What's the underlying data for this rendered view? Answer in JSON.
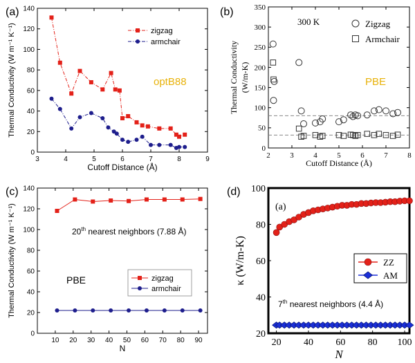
{
  "chart_data": [
    {
      "type": "line",
      "panel_label": "(a)",
      "xlabel": "Cutoff Distance (Å)",
      "ylabel": "Thermal Conductivity (W m⁻¹ K⁻¹)",
      "xlim": [
        3,
        9
      ],
      "ylim": [
        0,
        140
      ],
      "xticks": [
        3,
        4,
        5,
        6,
        7,
        8,
        9
      ],
      "yticks": [
        0,
        20,
        40,
        60,
        80,
        100,
        120,
        140
      ],
      "annotation": "optB88",
      "annotation_color": "#e8b20a",
      "legend_position": "top-right",
      "series": [
        {
          "name": "zigzag",
          "color": "#e32119",
          "marker": "square",
          "x": [
            3.5,
            3.8,
            4.2,
            4.5,
            4.9,
            5.3,
            5.6,
            5.75,
            5.9,
            6.0,
            6.2,
            6.5,
            6.7,
            6.9,
            7.3,
            7.7,
            7.9,
            8.0,
            8.2
          ],
          "values": [
            131,
            87,
            57,
            79,
            68,
            61,
            77,
            61,
            60,
            33,
            35,
            29,
            26,
            25,
            23,
            23,
            17,
            15,
            17
          ]
        },
        {
          "name": "armchair",
          "color": "#1d1d8c",
          "marker": "circle",
          "x": [
            3.5,
            3.8,
            4.2,
            4.5,
            4.9,
            5.3,
            5.5,
            5.7,
            5.8,
            6.0,
            6.2,
            6.5,
            6.7,
            7.0,
            7.3,
            7.7,
            7.9,
            8.0,
            8.2
          ],
          "values": [
            52,
            42,
            23,
            34,
            38,
            33,
            24,
            20,
            18,
            12,
            10,
            12,
            15,
            7,
            7,
            7,
            4,
            5,
            5
          ]
        }
      ]
    },
    {
      "type": "scatter",
      "panel_label": "(b)",
      "xlabel": "Cutoff Distance (Å)",
      "ylabel_line1": "Thermal Conductivity",
      "ylabel_line2": "(W/m-K)",
      "xlim": [
        2,
        8
      ],
      "ylim": [
        0,
        350
      ],
      "xticks": [
        2,
        3,
        4,
        5,
        6,
        7,
        8
      ],
      "yticks": [
        0,
        50,
        100,
        150,
        200,
        250,
        300,
        350
      ],
      "annotation_temp": "300 K",
      "annotation": "PBE",
      "annotation_color": "#e8b20a",
      "legend_position": "top-right",
      "reference_lines": [
        80,
        32
      ],
      "series": [
        {
          "name": "Zigzag",
          "marker": "open-circle",
          "x": [
            2.2,
            2.22,
            2.25,
            3.3,
            3.4,
            3.5,
            4.0,
            4.2,
            4.3,
            5.0,
            5.2,
            5.5,
            5.6,
            5.7,
            5.8,
            6.2,
            6.5,
            6.7,
            7.0,
            7.3,
            7.5
          ],
          "values": [
            258,
            118,
            165,
            212,
            92,
            60,
            62,
            65,
            72,
            65,
            70,
            82,
            78,
            82,
            80,
            82,
            92,
            95,
            92,
            85,
            88
          ]
        },
        {
          "name": "Armchair",
          "marker": "open-square",
          "x": [
            2.2,
            2.22,
            3.3,
            3.4,
            3.5,
            4.0,
            4.2,
            4.3,
            5.0,
            5.2,
            5.5,
            5.6,
            5.7,
            5.8,
            6.2,
            6.5,
            6.7,
            7.0,
            7.3,
            7.5
          ],
          "values": [
            212,
            170,
            48,
            28,
            30,
            32,
            28,
            30,
            32,
            30,
            33,
            32,
            30,
            32,
            35,
            32,
            35,
            32,
            30,
            33
          ]
        }
      ]
    },
    {
      "type": "line",
      "panel_label": "(c)",
      "xlabel": "N",
      "ylabel": "Thermal Conductivity (W m⁻¹ K⁻¹)",
      "xlim": [
        0,
        95
      ],
      "ylim": [
        0,
        140
      ],
      "xticks": [
        10,
        20,
        30,
        40,
        50,
        60,
        70,
        80,
        90
      ],
      "yticks": [
        0,
        20,
        40,
        60,
        80,
        100,
        120,
        140
      ],
      "annotation_prefix": "20",
      "annotation_sup": "th",
      "annotation_suffix": " nearest neighbors (7.88 Å)",
      "annotation2": "PBE",
      "legend_position": "right",
      "series": [
        {
          "name": "zigzag",
          "color": "#e32119",
          "marker": "square",
          "x": [
            11,
            21,
            31,
            41,
            51,
            61,
            71,
            81,
            91
          ],
          "values": [
            118,
            129,
            127,
            128,
            127.5,
            129,
            129,
            129,
            129.5
          ]
        },
        {
          "name": "armchair",
          "color": "#1d1d8c",
          "marker": "circle",
          "x": [
            11,
            21,
            31,
            41,
            51,
            61,
            71,
            81,
            91
          ],
          "values": [
            22,
            22,
            22,
            22,
            22,
            22,
            22,
            22,
            22
          ]
        }
      ]
    },
    {
      "type": "line",
      "panel_label": "(d)",
      "inner_label": "(a)",
      "xlabel": "N",
      "ylabel": "κ (W/m-K)",
      "xlim": [
        15,
        103
      ],
      "ylim": [
        20,
        100
      ],
      "xticks": [
        20,
        40,
        60,
        80,
        100
      ],
      "yticks": [
        20,
        40,
        60,
        80,
        100
      ],
      "annotation_prefix": "7",
      "annotation_sup": "th",
      "annotation_suffix": " nearest neighbors (4.4 Å)",
      "legend_position": "right",
      "series": [
        {
          "name": "ZZ",
          "color": "#e32119",
          "marker": "circle",
          "x": [
            20,
            22,
            25,
            28,
            31,
            34,
            37,
            40,
            43,
            46,
            49,
            52,
            55,
            58,
            61,
            64,
            67,
            70,
            73,
            76,
            79,
            82,
            85,
            88,
            91,
            94,
            97,
            100,
            103
          ],
          "values": [
            75.5,
            78.5,
            80,
            81.5,
            82.5,
            84,
            85.5,
            86.5,
            87.5,
            88,
            88.5,
            89,
            89.5,
            90,
            90.5,
            90.5,
            91,
            91,
            91.5,
            91.5,
            91.8,
            92,
            92,
            92.2,
            92.5,
            92.5,
            92.8,
            93,
            93
          ]
        },
        {
          "name": "AM",
          "color": "#1b2fd8",
          "marker": "diamond",
          "x": [
            20,
            22,
            25,
            28,
            31,
            34,
            37,
            40,
            43,
            46,
            49,
            52,
            55,
            58,
            61,
            64,
            67,
            70,
            73,
            76,
            79,
            82,
            85,
            88,
            91,
            94,
            97,
            100,
            103
          ],
          "values": [
            24.5,
            24.5,
            24.5,
            24.5,
            24.5,
            24.5,
            24.5,
            24.5,
            24.5,
            24.5,
            24.5,
            24.5,
            24.5,
            24.5,
            24.5,
            24.5,
            24.5,
            24.5,
            24.5,
            24.5,
            24.5,
            24.5,
            24.5,
            24.5,
            24.5,
            24.5,
            24.5,
            24.5,
            24.5
          ]
        }
      ]
    }
  ]
}
